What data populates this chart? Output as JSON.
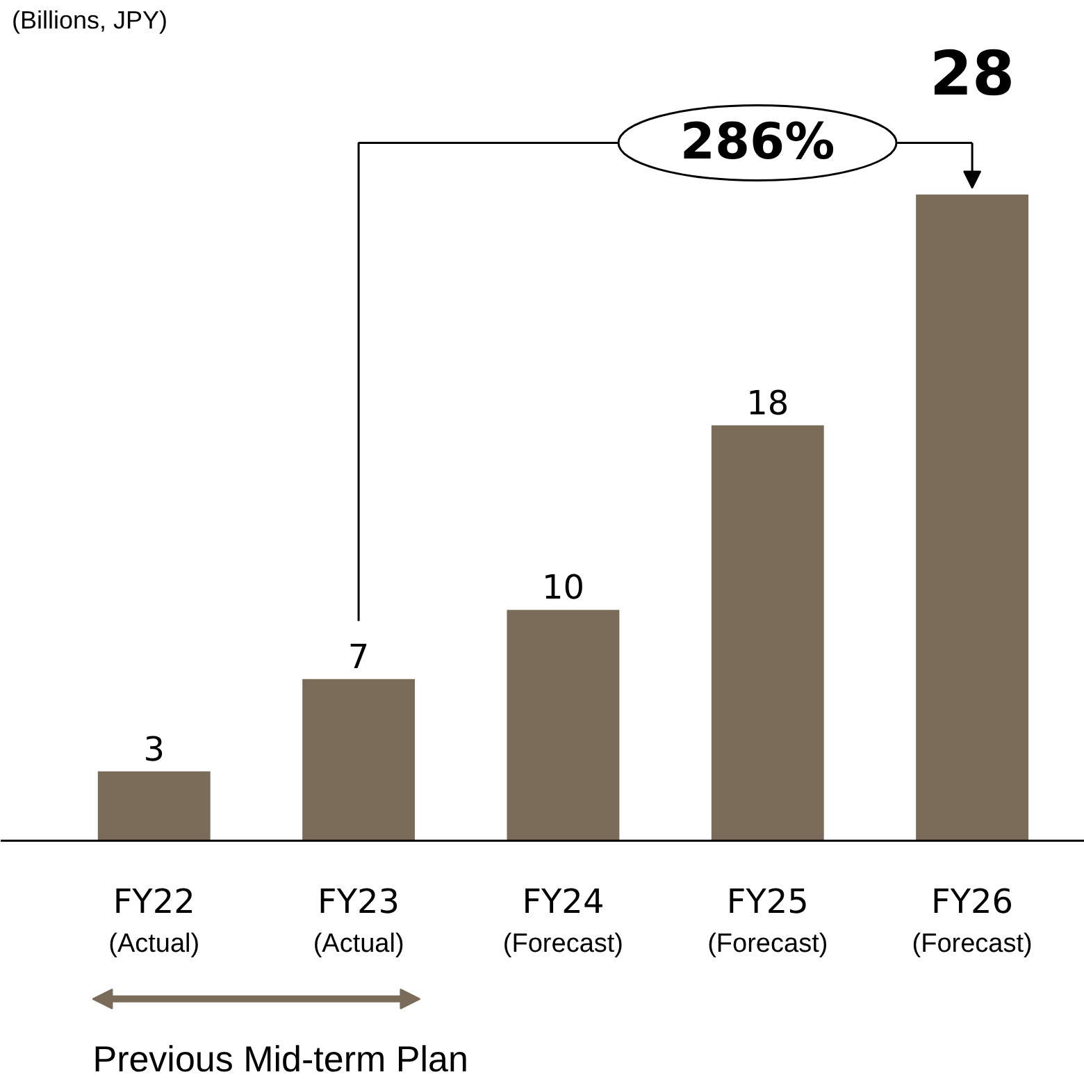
{
  "chart_data": {
    "type": "bar",
    "categories": [
      "FY22\n(Actual)",
      "FY23\n(Actual)",
      "FY24\n(Forecast)",
      "FY25\n(Forecast)",
      "FY26\n(Forecast)"
    ],
    "values": [
      3,
      7,
      10,
      18,
      28
    ],
    "color": "#7b6b59",
    "data_labels": true,
    "grid": false,
    "annotations": [
      "286%",
      "Previous Mid-term Plan",
      "(Billions, JPY)"
    ]
  }
}
